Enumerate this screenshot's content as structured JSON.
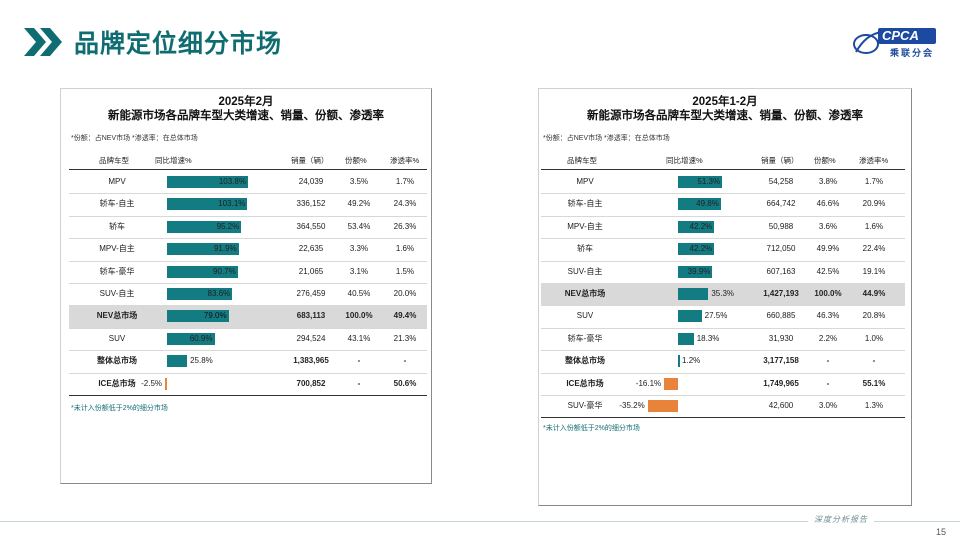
{
  "header": {
    "title": "品牌定位细分市场",
    "logo_text": "CPCA",
    "logo_sub": "乘联分会",
    "colors": {
      "teal": "#0f6d72",
      "bar_positive": "#137b82",
      "bar_negative": "#e8843a",
      "highlight_row": "#d9d9d9"
    }
  },
  "left": {
    "title1": "2025年2月",
    "title2": "新能源市场各品牌车型大类增速、销量、份额、渗透率",
    "note": "*份额：占NEV市场   *渗透率：在总体市场",
    "headers": {
      "name": "品牌车型",
      "growth": "同比增速%",
      "sales": "销量（辆）",
      "share": "份额%",
      "pen": "渗透率%"
    },
    "rows": [
      {
        "name": "MPV",
        "growth": 103.8,
        "growth_label": "103.8%",
        "sales": "24,039",
        "share": "3.5%",
        "pen": "1.7%"
      },
      {
        "name": "轿车-自主",
        "growth": 103.1,
        "growth_label": "103.1%",
        "sales": "336,152",
        "share": "49.2%",
        "pen": "24.3%"
      },
      {
        "name": "轿车",
        "growth": 95.2,
        "growth_label": "95.2%",
        "sales": "364,550",
        "share": "53.4%",
        "pen": "26.3%"
      },
      {
        "name": "MPV-自主",
        "growth": 91.9,
        "growth_label": "91.9%",
        "sales": "22,635",
        "share": "3.3%",
        "pen": "1.6%"
      },
      {
        "name": "轿车-豪华",
        "growth": 90.7,
        "growth_label": "90.7%",
        "sales": "21,065",
        "share": "3.1%",
        "pen": "1.5%"
      },
      {
        "name": "SUV-自主",
        "growth": 83.6,
        "growth_label": "83.6%",
        "sales": "276,459",
        "share": "40.5%",
        "pen": "20.0%"
      },
      {
        "name": "NEV总市场",
        "growth": 79.0,
        "growth_label": "79.0%",
        "sales": "683,113",
        "share": "100.0%",
        "pen": "49.4%",
        "bold": true,
        "highlight": true
      },
      {
        "name": "SUV",
        "growth": 60.9,
        "growth_label": "60.9%",
        "sales": "294,524",
        "share": "43.1%",
        "pen": "21.3%"
      },
      {
        "name": "整体总市场",
        "growth": 25.8,
        "growth_label": "25.8%",
        "sales": "1,383,965",
        "share": "-",
        "pen": "-",
        "bold": true
      },
      {
        "name": "ICE总市场",
        "growth": -2.5,
        "growth_label": "-2.5%",
        "sales": "700,852",
        "share": "-",
        "pen": "50.6%",
        "bold": true
      }
    ],
    "footnote": "*未计入份额低于2%的细分市场"
  },
  "right": {
    "title1": "2025年1-2月",
    "title2": "新能源市场各品牌车型大类增速、销量、份额、渗透率",
    "note": "*份额：占NEV市场   *渗透率：在总体市场",
    "headers": {
      "name": "品牌车型",
      "growth": "同比增速%",
      "sales": "销量（辆）",
      "share": "份额%",
      "pen": "渗透率%"
    },
    "rows": [
      {
        "name": "MPV",
        "growth": 51.3,
        "growth_label": "51.3%",
        "sales": "54,258",
        "share": "3.8%",
        "pen": "1.7%"
      },
      {
        "name": "轿车-自主",
        "growth": 49.8,
        "growth_label": "49.8%",
        "sales": "664,742",
        "share": "46.6%",
        "pen": "20.9%"
      },
      {
        "name": "MPV-自主",
        "growth": 42.2,
        "growth_label": "42.2%",
        "sales": "50,988",
        "share": "3.6%",
        "pen": "1.6%"
      },
      {
        "name": "轿车",
        "growth": 42.2,
        "growth_label": "42.2%",
        "sales": "712,050",
        "share": "49.9%",
        "pen": "22.4%"
      },
      {
        "name": "SUV-自主",
        "growth": 39.9,
        "growth_label": "39.9%",
        "sales": "607,163",
        "share": "42.5%",
        "pen": "19.1%"
      },
      {
        "name": "NEV总市场",
        "growth": 35.3,
        "growth_label": "35.3%",
        "sales": "1,427,193",
        "share": "100.0%",
        "pen": "44.9%",
        "bold": true,
        "highlight": true
      },
      {
        "name": "SUV",
        "growth": 27.5,
        "growth_label": "27.5%",
        "sales": "660,885",
        "share": "46.3%",
        "pen": "20.8%"
      },
      {
        "name": "轿车-豪华",
        "growth": 18.3,
        "growth_label": "18.3%",
        "sales": "31,930",
        "share": "2.2%",
        "pen": "1.0%"
      },
      {
        "name": "整体总市场",
        "growth": 1.2,
        "growth_label": "1.2%",
        "sales": "3,177,158",
        "share": "-",
        "pen": "-",
        "bold": true
      },
      {
        "name": "ICE总市场",
        "growth": -16.1,
        "growth_label": "-16.1%",
        "sales": "1,749,965",
        "share": "-",
        "pen": "55.1%",
        "bold": true
      },
      {
        "name": "SUV-豪华",
        "growth": -35.2,
        "growth_label": "-35.2%",
        "sales": "42,600",
        "share": "3.0%",
        "pen": "1.3%"
      }
    ],
    "footnote": "*未计入份额低于2%的细分市场"
  },
  "footer": {
    "tag": "深度分析报告",
    "page": "15"
  }
}
